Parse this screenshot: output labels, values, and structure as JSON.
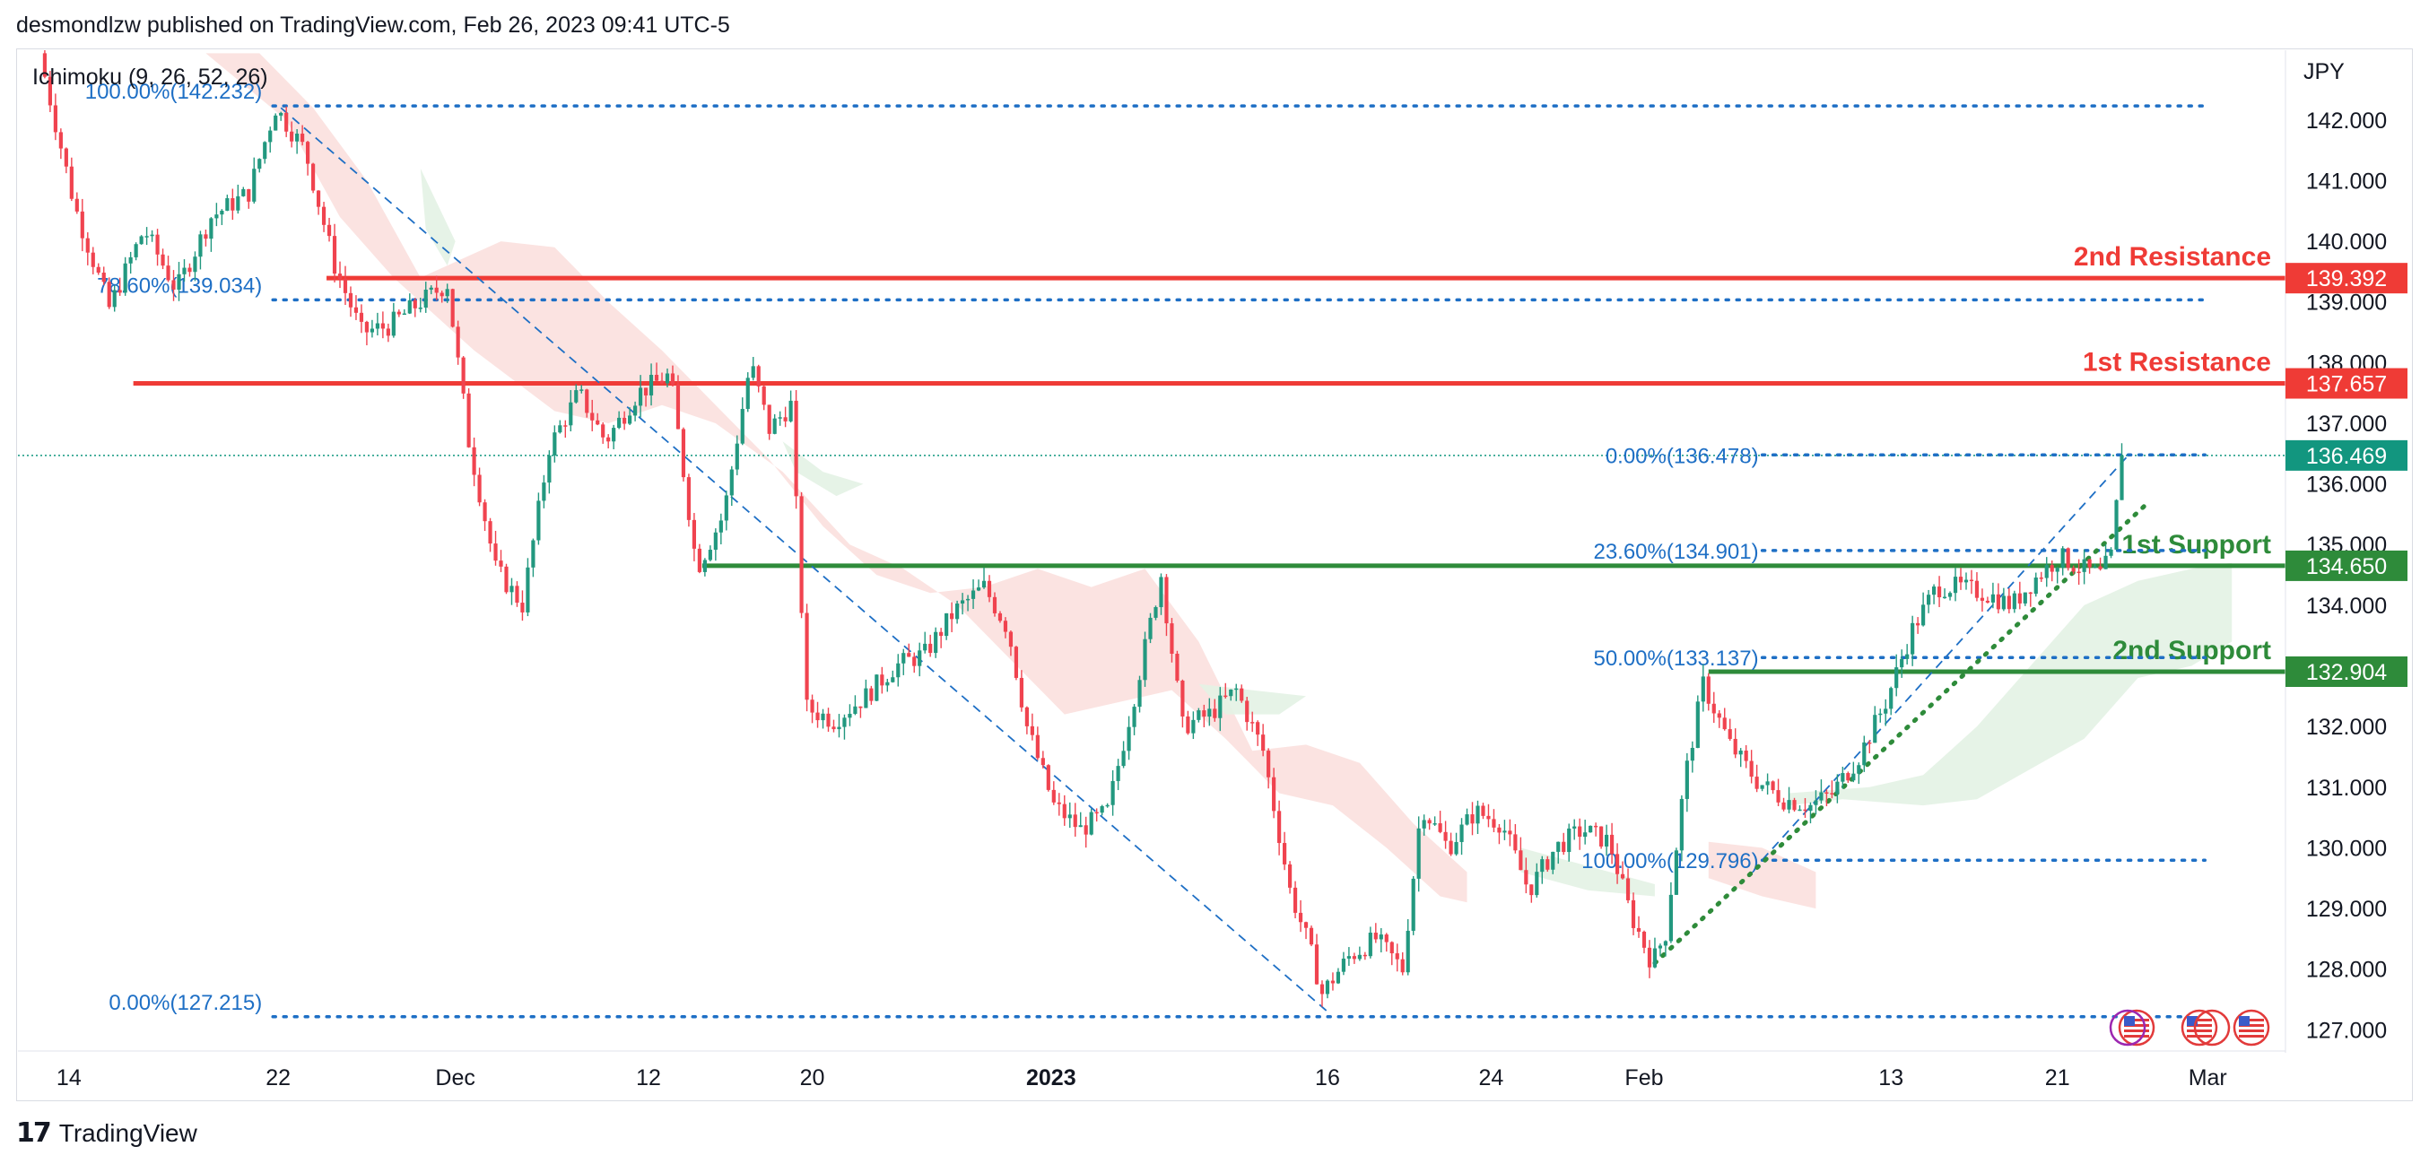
{
  "header": {
    "text": "desmondlzw published on TradingView.com, Feb 26, 2023 09:41 UTC-5"
  },
  "footer": {
    "brand": "TradingView",
    "logo_icon": "tradingview-logo-icon"
  },
  "colors": {
    "up": "#26a69a",
    "up_body": "#22987f",
    "down": "#f0434f",
    "resistance": "#ef3b36",
    "support": "#2e8b3a",
    "fib": "#1e6fc5",
    "price_tag": "#12967f",
    "cloud_red": "#fbe0de",
    "cloud_green": "#e3f2e4"
  },
  "chart_data": {
    "type": "candlestick",
    "symbol_unit": "JPY",
    "indicator": "Ichimoku (9, 26, 52, 26)",
    "ylim": [
      126.65,
      143.15
    ],
    "y_ticks": [
      127,
      128,
      129,
      130,
      131,
      132,
      133,
      134,
      135,
      136,
      137,
      138,
      139,
      140,
      141,
      142
    ],
    "y_tick_labels": [
      "127.000",
      "128.000",
      "129.000",
      "130.000",
      "131.000",
      "132.000",
      "133.000",
      "134.000",
      "135.000",
      "136.000",
      "137.000",
      "138.000",
      "139.000",
      "140.000",
      "141.000",
      "142.000"
    ],
    "x_labels": [
      {
        "label": "14",
        "t": 0.9,
        "bold": false
      },
      {
        "label": "22",
        "t": 8.7,
        "bold": false
      },
      {
        "label": "Dec",
        "t": 15.3,
        "bold": false
      },
      {
        "label": "12",
        "t": 22.5,
        "bold": false
      },
      {
        "label": "20",
        "t": 28.6,
        "bold": false
      },
      {
        "label": "2023",
        "t": 37.5,
        "bold": true
      },
      {
        "label": "16",
        "t": 47.8,
        "bold": false
      },
      {
        "label": "24",
        "t": 53.9,
        "bold": false
      },
      {
        "label": "Feb",
        "t": 59.6,
        "bold": false
      },
      {
        "label": "13",
        "t": 68.8,
        "bold": false
      },
      {
        "label": "21",
        "t": 75.0,
        "bold": false
      },
      {
        "label": "Mar",
        "t": 80.6,
        "bold": false
      }
    ],
    "price_path": [
      [
        0,
        143.1
      ],
      [
        1.3,
        140.6
      ],
      [
        2.6,
        138.9
      ],
      [
        3.9,
        140.2
      ],
      [
        5.1,
        139.2
      ],
      [
        6.4,
        140.4
      ],
      [
        7.8,
        140.8
      ],
      [
        8.8,
        142.2
      ],
      [
        9.9,
        141.5
      ],
      [
        11.0,
        139.6
      ],
      [
        12.0,
        138.5
      ],
      [
        13.0,
        138.6
      ],
      [
        14.2,
        139.0
      ],
      [
        15.2,
        139.3
      ],
      [
        16.0,
        136.7
      ],
      [
        17.0,
        134.6
      ],
      [
        18.0,
        134.0
      ],
      [
        19.0,
        136.6
      ],
      [
        20.1,
        137.5
      ],
      [
        21.1,
        136.7
      ],
      [
        22.3,
        137.5
      ],
      [
        23.5,
        137.8
      ],
      [
        24.5,
        134.6
      ],
      [
        25.5,
        135.5
      ],
      [
        26.5,
        138.0
      ],
      [
        27.2,
        136.9
      ],
      [
        28.0,
        137.3
      ],
      [
        28.6,
        132.3
      ],
      [
        29.6,
        132.1
      ],
      [
        30.8,
        132.5
      ],
      [
        31.9,
        133.0
      ],
      [
        33.0,
        133.2
      ],
      [
        34.1,
        133.9
      ],
      [
        35.2,
        134.3
      ],
      [
        36.1,
        133.6
      ],
      [
        36.8,
        132.0
      ],
      [
        37.8,
        130.7
      ],
      [
        38.8,
        130.3
      ],
      [
        39.8,
        130.6
      ],
      [
        40.8,
        132.5
      ],
      [
        41.8,
        134.5
      ],
      [
        42.6,
        132.0
      ],
      [
        43.6,
        132.2
      ],
      [
        44.6,
        132.6
      ],
      [
        45.6,
        131.6
      ],
      [
        46.6,
        129.3
      ],
      [
        47.3,
        128.4
      ],
      [
        47.8,
        127.6
      ],
      [
        48.8,
        128.2
      ],
      [
        49.8,
        128.5
      ],
      [
        50.8,
        128.0
      ],
      [
        51.5,
        130.7
      ],
      [
        52.5,
        130.0
      ],
      [
        53.5,
        130.6
      ],
      [
        54.5,
        130.4
      ],
      [
        55.5,
        129.3
      ],
      [
        56.5,
        130.0
      ],
      [
        57.5,
        130.3
      ],
      [
        58.5,
        130.1
      ],
      [
        59.3,
        128.9
      ],
      [
        60.1,
        128.1
      ],
      [
        60.6,
        128.6
      ],
      [
        61.3,
        131.1
      ],
      [
        62.0,
        132.7
      ],
      [
        63.0,
        131.7
      ],
      [
        64.0,
        131.1
      ],
      [
        65.0,
        130.8
      ],
      [
        66.0,
        130.7
      ],
      [
        66.8,
        130.9
      ],
      [
        67.8,
        131.5
      ],
      [
        68.8,
        132.4
      ],
      [
        69.8,
        133.6
      ],
      [
        70.7,
        134.3
      ],
      [
        71.5,
        134.3
      ],
      [
        72.5,
        134.2
      ],
      [
        73.5,
        134.0
      ],
      [
        74.5,
        134.5
      ],
      [
        75.3,
        134.8
      ],
      [
        76.1,
        134.6
      ],
      [
        76.8,
        134.5
      ],
      [
        77.2,
        134.8
      ],
      [
        77.6,
        136.47
      ]
    ],
    "horizontal_levels": [
      {
        "name": "2nd Resistance",
        "value": 139.392,
        "label": "139.392",
        "t_start": 10.5
      },
      {
        "name": "1st Resistance",
        "value": 137.657,
        "label": "137.657",
        "t_start": 3.3
      },
      {
        "name": "1st Support",
        "value": 134.65,
        "label": "134.650",
        "t_start": 24.5
      },
      {
        "name": "2nd Support",
        "value": 132.904,
        "label": "132.904",
        "t_start": 62.0
      }
    ],
    "current_price": {
      "value": 136.469,
      "label": "136.469"
    },
    "fib_left": {
      "t_start": 8.5,
      "levels": [
        {
          "label": "100.00%(142.232)",
          "value": 142.232
        },
        {
          "label": "78.60%(139.034)",
          "value": 139.034
        },
        {
          "label": "0.00%(127.215)",
          "value": 127.215
        }
      ]
    },
    "fib_right": {
      "t_start": 64.0,
      "levels": [
        {
          "label": "0.00%(136.478)",
          "value": 136.478
        },
        {
          "label": "23.60%(134.901)",
          "value": 134.901
        },
        {
          "label": "50.00%(133.137)",
          "value": 133.137
        },
        {
          "label": "100.00%(129.796)",
          "value": 129.796
        }
      ]
    },
    "trendlines": [
      {
        "kind": "dashed",
        "from": [
          8.8,
          142.2
        ],
        "to": [
          47.8,
          127.3
        ]
      },
      {
        "kind": "dashed",
        "from": [
          64.0,
          129.8
        ],
        "to": [
          77.6,
          136.45
        ]
      },
      {
        "kind": "dotted",
        "from": [
          60.0,
          128.1
        ],
        "to": [
          78.4,
          135.7
        ]
      }
    ],
    "cloud_red": [
      [
        [
          6.0,
          143.1
        ],
        [
          9.0,
          142.0
        ],
        [
          11.0,
          140.4
        ],
        [
          13.0,
          139.4
        ],
        [
          16.0,
          138.2
        ],
        [
          19.0,
          137.2
        ],
        [
          21.0,
          137.0
        ],
        [
          23.0,
          137.3
        ],
        [
          25.0,
          137.0
        ],
        [
          27.5,
          136.2
        ],
        [
          30.0,
          135.0
        ],
        [
          32.0,
          134.6
        ],
        [
          34.0,
          134.0
        ],
        [
          36.0,
          133.1
        ],
        [
          38.0,
          132.2
        ],
        [
          40.0,
          132.4
        ],
        [
          42.0,
          132.6
        ],
        [
          44.0,
          131.8
        ],
        [
          46.0,
          130.9
        ],
        [
          48.0,
          130.7
        ],
        [
          50.0,
          130.0
        ],
        [
          52.0,
          129.2
        ],
        [
          53.0,
          129.1
        ],
        [
          53.0,
          129.6
        ],
        [
          51.0,
          130.4
        ],
        [
          49.0,
          131.4
        ],
        [
          47.0,
          131.7
        ],
        [
          45.0,
          131.6
        ],
        [
          43.0,
          133.4
        ],
        [
          41.0,
          134.6
        ],
        [
          39.0,
          134.3
        ],
        [
          37.0,
          134.6
        ],
        [
          35.0,
          134.3
        ],
        [
          33.0,
          134.2
        ],
        [
          31.0,
          134.5
        ],
        [
          29.0,
          135.3
        ],
        [
          27.0,
          136.4
        ],
        [
          25.0,
          137.3
        ],
        [
          23.0,
          138.2
        ],
        [
          21.0,
          139.0
        ],
        [
          19.0,
          139.9
        ],
        [
          17.0,
          140.0
        ],
        [
          15.0,
          139.6
        ],
        [
          14.0,
          139.4
        ],
        [
          12.0,
          141.0
        ],
        [
          10.0,
          142.2
        ],
        [
          8.0,
          143.1
        ]
      ],
      [
        [
          62.0,
          129.5
        ],
        [
          64.0,
          129.2
        ],
        [
          66.0,
          129.0
        ],
        [
          66.0,
          129.6
        ],
        [
          64.0,
          130.0
        ],
        [
          62.0,
          130.1
        ]
      ]
    ],
    "cloud_green": [
      [
        [
          14.0,
          141.2
        ],
        [
          15.3,
          140.0
        ],
        [
          15.0,
          139.6
        ],
        [
          14.2,
          140.2
        ]
      ],
      [
        [
          27.5,
          136.7
        ],
        [
          29.0,
          136.2
        ],
        [
          30.5,
          136.0
        ],
        [
          29.5,
          135.8
        ],
        [
          28.0,
          136.2
        ]
      ],
      [
        [
          43.0,
          132.7
        ],
        [
          45.0,
          132.6
        ],
        [
          47.0,
          132.5
        ],
        [
          46.0,
          132.2
        ],
        [
          44.0,
          132.2
        ]
      ],
      [
        [
          55.0,
          130.0
        ],
        [
          57.5,
          129.7
        ],
        [
          60.0,
          129.4
        ],
        [
          60.0,
          129.2
        ],
        [
          57.5,
          129.3
        ],
        [
          55.0,
          129.6
        ]
      ],
      [
        [
          65.0,
          130.9
        ],
        [
          68.0,
          131.0
        ],
        [
          70.0,
          131.2
        ],
        [
          72.0,
          132.0
        ],
        [
          74.0,
          133.0
        ],
        [
          76.0,
          134.0
        ],
        [
          78.0,
          134.4
        ],
        [
          80.0,
          134.6
        ],
        [
          81.5,
          134.7
        ],
        [
          81.5,
          133.4
        ],
        [
          80.0,
          133.0
        ],
        [
          78.0,
          132.8
        ],
        [
          76.0,
          131.8
        ],
        [
          74.0,
          131.3
        ],
        [
          72.0,
          130.8
        ],
        [
          70.0,
          130.7
        ],
        [
          67.0,
          130.8
        ],
        [
          65.0,
          130.7
        ]
      ]
    ],
    "event_icon_names": [
      "us-flag-event-icon",
      "us-flag-event-icon",
      "us-flag-event-icon",
      "us-flag-event-icon"
    ]
  }
}
